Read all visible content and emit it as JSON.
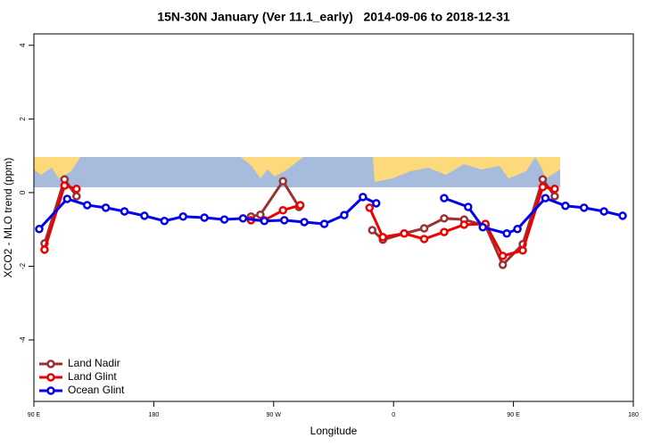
{
  "chart_data": {
    "type": "line",
    "title": "15N-30N January (Ver 11.1_early)   2014-09-06 to 2018-12-31",
    "x_label": "Longitude",
    "y_label": "XCO2 - MLO trend (ppm)",
    "xlim": [
      90,
      540
    ],
    "xticks": [
      {
        "value": 90,
        "label": "90 E"
      },
      {
        "value": 180,
        "label": "180"
      },
      {
        "value": 270,
        "label": "90 W"
      },
      {
        "value": 360,
        "label": "0"
      },
      {
        "value": 450,
        "label": "90 E"
      },
      {
        "value": 540,
        "label": "180"
      }
    ],
    "ylim": [
      -5.67,
      4.31
    ],
    "yticks": [
      -4,
      -2,
      0,
      2,
      4
    ],
    "legend_position": "bottom-left",
    "series": [
      {
        "name": "Land Nadir",
        "color": "#993333",
        "x": [
          98,
          113,
          122,
          null,
          253,
          260,
          277,
          289,
          null,
          344,
          352,
          368,
          383,
          398,
          413,
          429,
          442,
          457,
          472,
          481
        ],
        "values": [
          -1.38,
          0.36,
          -0.1,
          null,
          -0.65,
          -0.6,
          0.31,
          -0.39,
          null,
          -1.02,
          -1.28,
          -1.11,
          -0.97,
          -0.7,
          -0.73,
          -0.9,
          -1.96,
          -1.4,
          0.36,
          -0.1
        ]
      },
      {
        "name": "Land Glint",
        "color": "#ee0000",
        "x": [
          98,
          113,
          122,
          null,
          253,
          263,
          277,
          290,
          null,
          342,
          352,
          368,
          383,
          398,
          413,
          429,
          442,
          457,
          472,
          481
        ],
        "values": [
          -1.55,
          0.19,
          0.1,
          null,
          -0.75,
          -0.75,
          -0.48,
          -0.34,
          null,
          -0.41,
          -1.21,
          -1.11,
          -1.26,
          -1.07,
          -0.87,
          -0.85,
          -1.72,
          -1.57,
          0.15,
          0.1
        ]
      },
      {
        "name": "Ocean Glint",
        "color": "#0000ee",
        "x": [
          94,
          115,
          130,
          144,
          158,
          173,
          188,
          202,
          218,
          233,
          247,
          263,
          278,
          293,
          308,
          323,
          337,
          347,
          null,
          398,
          416,
          427,
          445,
          453,
          474,
          489,
          503,
          518,
          532
        ],
        "values": [
          -0.99,
          -0.17,
          -0.34,
          -0.41,
          -0.51,
          -0.63,
          -0.77,
          -0.65,
          -0.68,
          -0.73,
          -0.7,
          -0.77,
          -0.75,
          -0.8,
          -0.85,
          -0.61,
          -0.12,
          -0.29,
          null,
          -0.15,
          -0.39,
          -0.94,
          -1.11,
          -0.99,
          -0.15,
          -0.36,
          -0.41,
          -0.51,
          -0.63
        ]
      }
    ]
  }
}
